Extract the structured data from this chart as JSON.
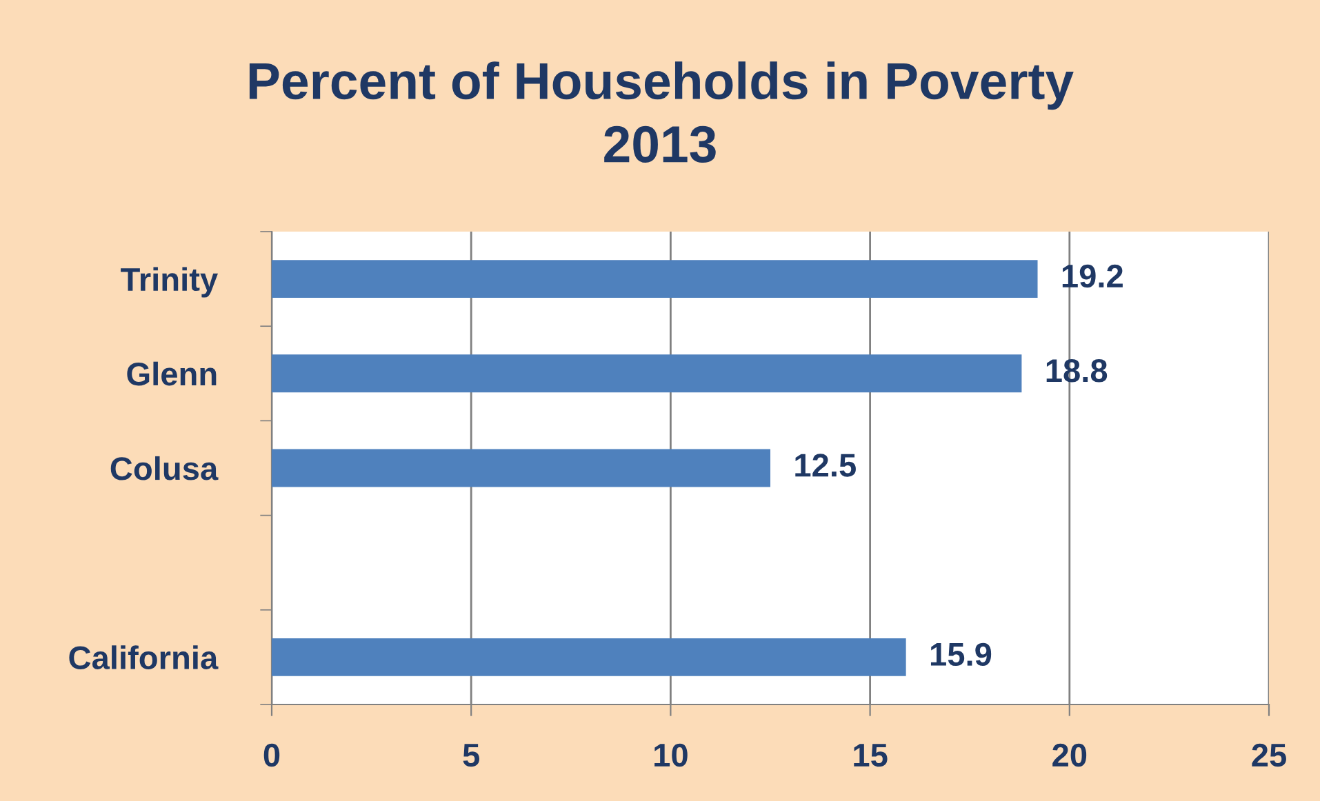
{
  "chart_data": {
    "type": "bar",
    "orientation": "horizontal",
    "title": "Percent of Households in Poverty\n2013",
    "categories": [
      "Trinity",
      "Glenn",
      "Colusa",
      null,
      "California"
    ],
    "values": [
      19.2,
      18.8,
      12.5,
      null,
      15.9
    ],
    "color": "#4f81bd",
    "xlim": [
      0,
      25
    ],
    "xticks": [
      0,
      5,
      10,
      15,
      20,
      25
    ],
    "grid": "x",
    "data_labels": true,
    "legend": false
  }
}
